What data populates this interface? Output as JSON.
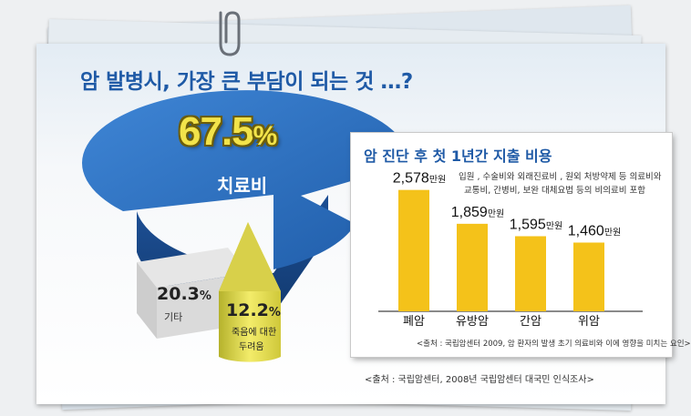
{
  "title": "암 발병시, 가장 큰 부담이 되는 것 …?",
  "source_main": "<출처 : 국립암센터, 2008년 국립암센터 대국민 인식조사>",
  "colors": {
    "title": "#1f5aa6",
    "pie_blue": "#2f74c4",
    "pie_gray": "#c9c9c9",
    "pie_yellow": "#e9e25a",
    "bar": "#f4c21a"
  },
  "icons": {
    "clip": "paperclip-icon"
  },
  "chart_data": [
    {
      "type": "pie",
      "title": "암 발병시, 가장 큰 부담이 되는 것 …?",
      "slices": [
        {
          "label": "치료비",
          "value": 67.5,
          "display": "67.5",
          "unit": "%"
        },
        {
          "label": "기타",
          "value": 20.3,
          "display": "20.3",
          "unit": "%"
        },
        {
          "label_line1": "죽음에 대한",
          "label_line2": "두려움",
          "value": 12.2,
          "display": "12.2",
          "unit": "%"
        }
      ]
    },
    {
      "type": "bar",
      "title": "암 진단 후 첫 1년간 지출 비용",
      "note_line1": "입원 , 수술비와 외래진료비 , 원외 처방약제 등 의료비와",
      "note_line2": "교통비, 간병비, 보완 대체요법 등의 비의료비 포함",
      "categories": [
        "폐암",
        "유방암",
        "간암",
        "위암"
      ],
      "values": [
        2578,
        1859,
        1595,
        1460
      ],
      "value_labels": [
        "2,578",
        "1,859",
        "1,595",
        "1,460"
      ],
      "unit": "만원",
      "ylim": [
        0,
        2900
      ],
      "source": "<출처 : 국립암센터 2009, 암 환자의 발생 초기 의료비와 이에 영향을 미치는 요인>"
    }
  ]
}
